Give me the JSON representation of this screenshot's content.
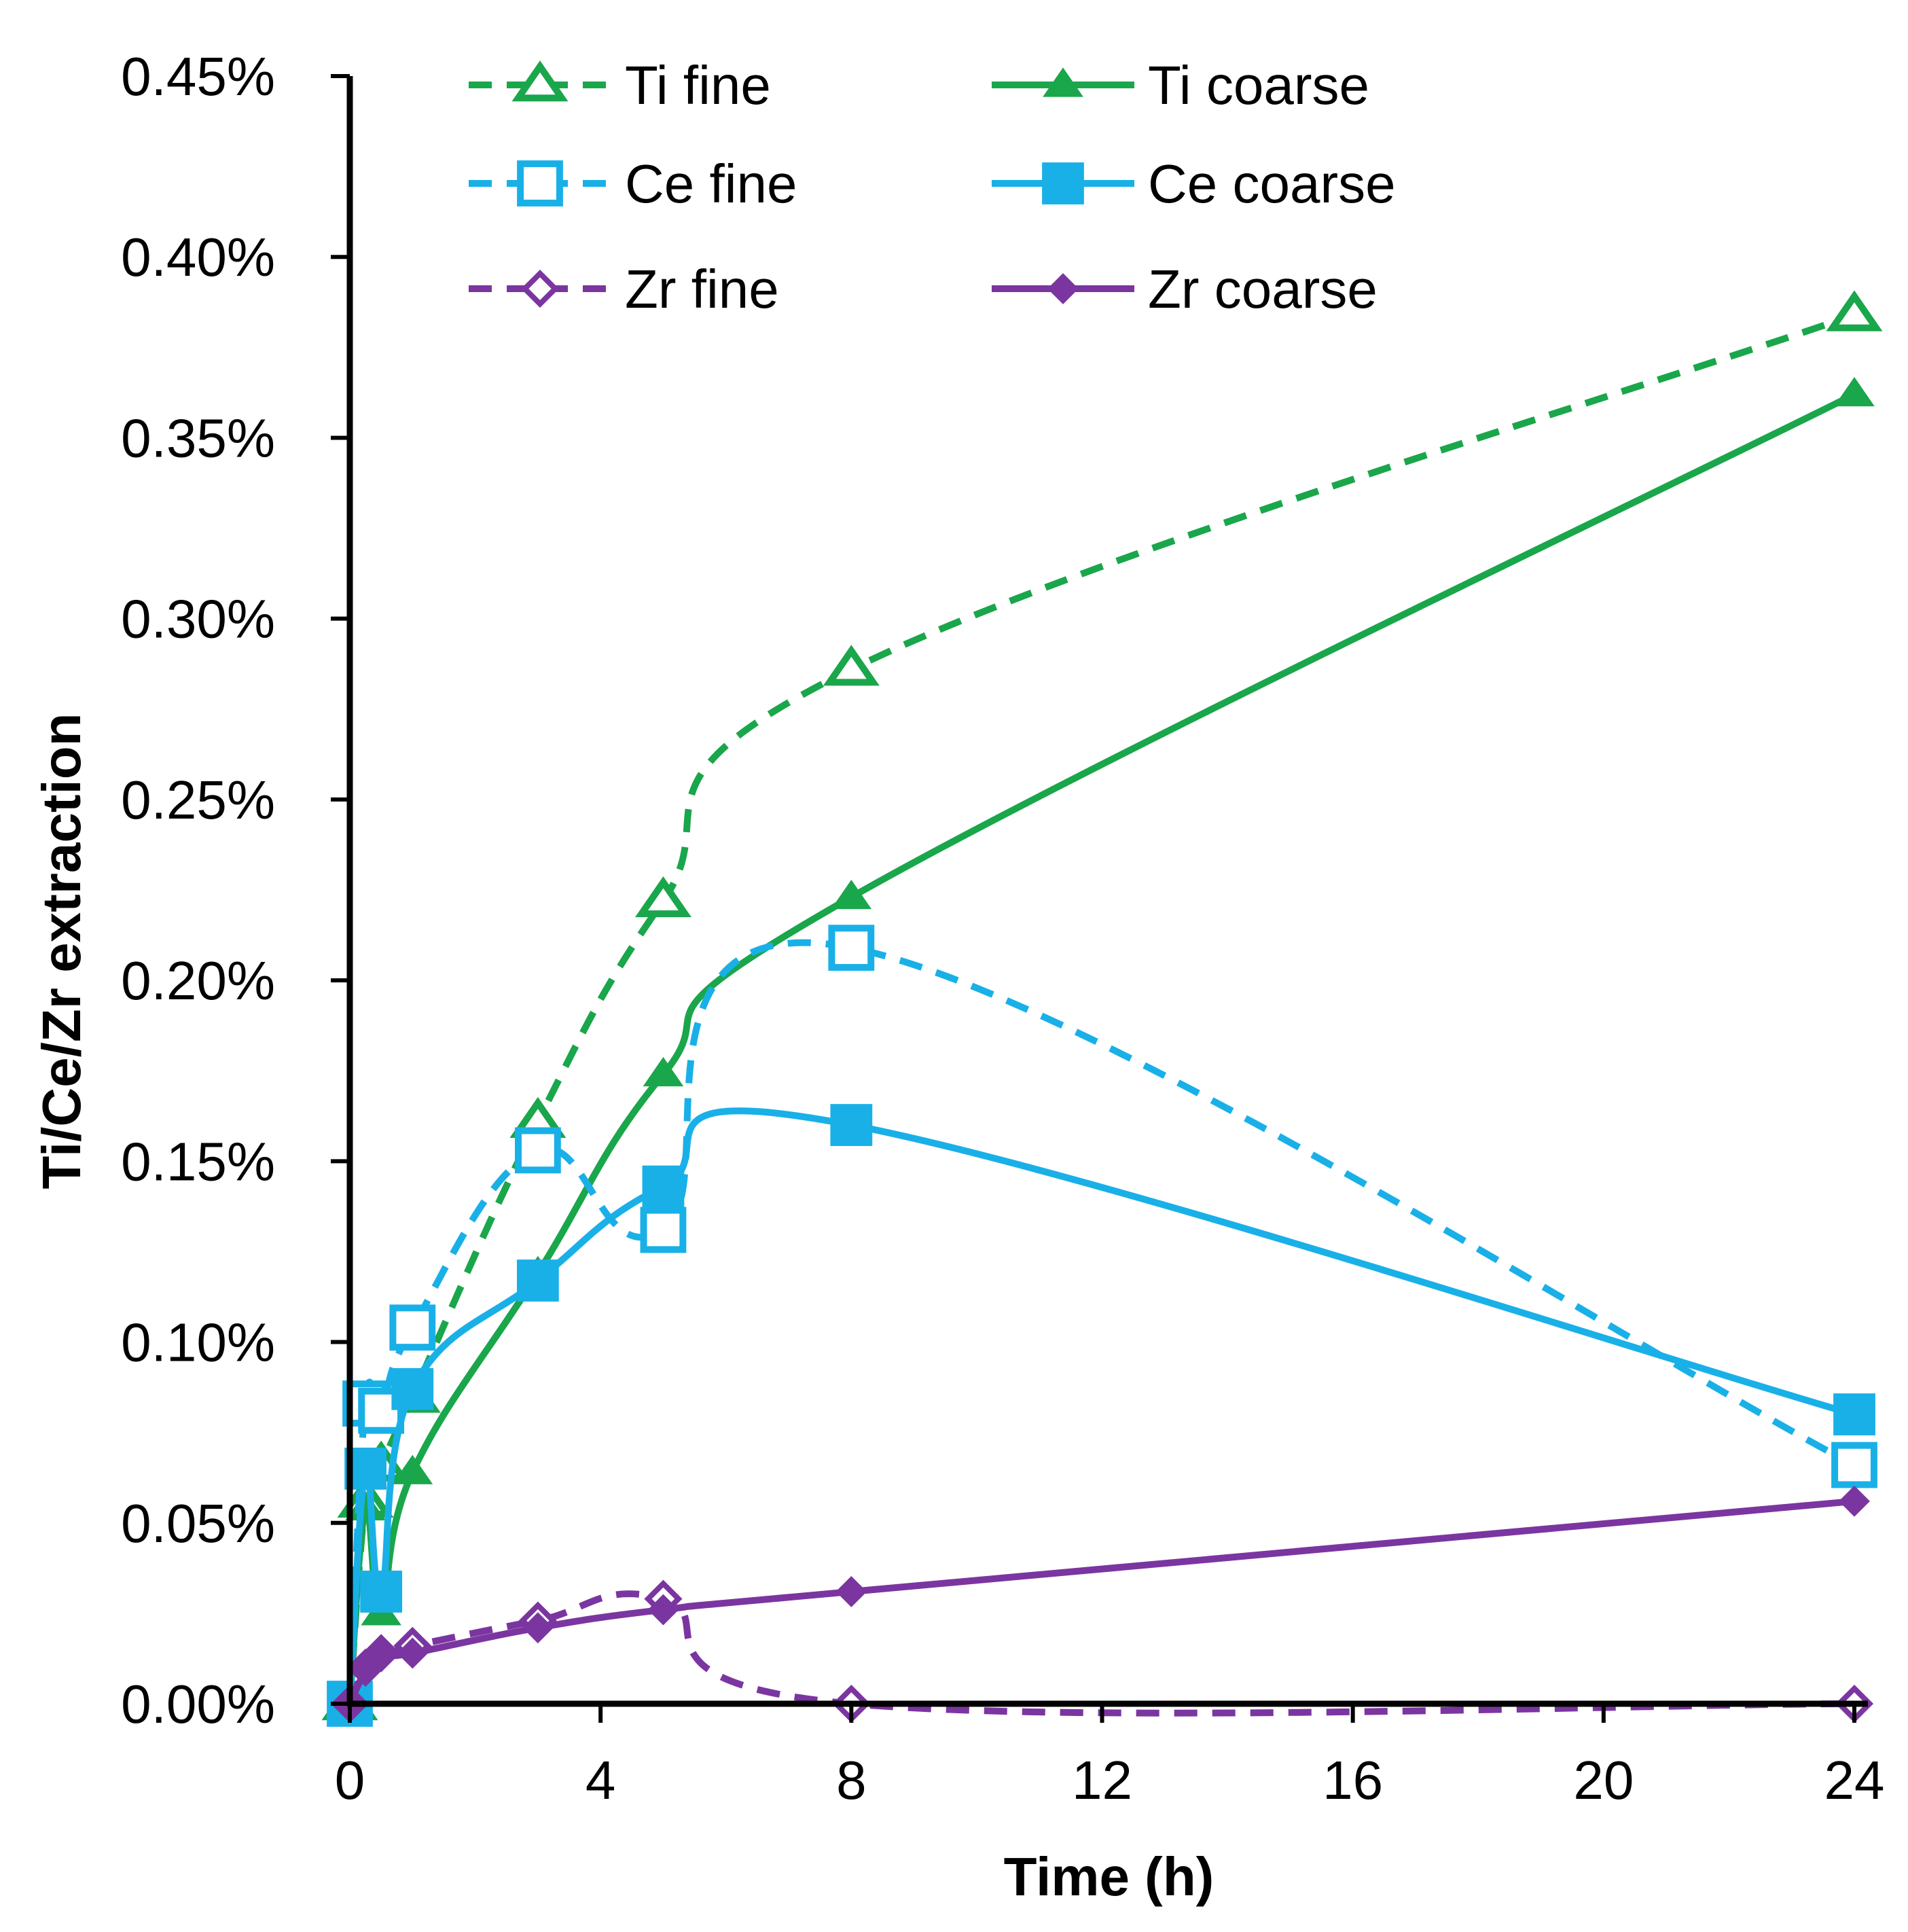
{
  "chart_data": {
    "type": "line",
    "title": "",
    "xlabel": "Time (h)",
    "ylabel": "Ti/Ce/Zr extraction",
    "xlim": [
      0,
      24
    ],
    "ylim": [
      0,
      0.45
    ],
    "xticks": [
      0,
      4,
      8,
      12,
      16,
      20,
      24
    ],
    "xtick_labels": [
      "0",
      "4",
      "8",
      "12",
      "16",
      "20",
      "24"
    ],
    "yticks": [
      0,
      0.05,
      0.1,
      0.15,
      0.2,
      0.25,
      0.3,
      0.35,
      0.4,
      0.45
    ],
    "ytick_labels": [
      "0.00%",
      "0.05%",
      "0.10%",
      "0.15%",
      "0.20%",
      "0.25%",
      "0.30%",
      "0.35%",
      "0.40%",
      "0.45%"
    ],
    "grid": false,
    "legend_position": "top",
    "series": [
      {
        "name": "Ti fine",
        "color": "#1aa64b",
        "dash": "dashed",
        "marker": "triangle-open",
        "x": [
          0,
          0.25,
          0.5,
          1,
          3,
          5,
          8,
          24
        ],
        "values": [
          0,
          0.056,
          0.066,
          0.085,
          0.161,
          0.222,
          0.286,
          0.384
        ]
      },
      {
        "name": "Ti coarse",
        "color": "#1aa64b",
        "dash": "solid",
        "marker": "triangle-filled",
        "x": [
          0,
          0.25,
          0.5,
          1,
          3,
          5,
          8,
          24
        ],
        "values": [
          0,
          0.054,
          0.025,
          0.064,
          0.119,
          0.174,
          0.223,
          0.362
        ]
      },
      {
        "name": "Ce fine",
        "color": "#19b0e8",
        "dash": "dashed",
        "marker": "square-open",
        "x": [
          0,
          0.25,
          0.5,
          1,
          3,
          5,
          8,
          24
        ],
        "values": [
          0,
          0.083,
          0.081,
          0.104,
          0.153,
          0.131,
          0.209,
          0.066
        ]
      },
      {
        "name": "Ce coarse",
        "color": "#19b0e8",
        "dash": "solid",
        "marker": "square-filled",
        "x": [
          0,
          0.25,
          0.5,
          1,
          3,
          5,
          8,
          24
        ],
        "values": [
          0,
          0.065,
          0.031,
          0.087,
          0.117,
          0.143,
          0.16,
          0.08
        ]
      },
      {
        "name": "Zr fine",
        "color": "#7b35a0",
        "dash": "dashed",
        "marker": "diamond-open",
        "x": [
          0,
          0.25,
          0.5,
          1,
          3,
          5,
          8,
          24
        ],
        "values": [
          0,
          0.01,
          0.014,
          0.016,
          0.023,
          0.029,
          0,
          0
        ]
      },
      {
        "name": "Zr coarse",
        "color": "#7b35a0",
        "dash": "solid",
        "marker": "diamond-filled",
        "x": [
          0,
          0.25,
          0.5,
          1,
          3,
          5,
          8,
          24
        ],
        "values": [
          0,
          0.009,
          0.013,
          0.014,
          0.021,
          0.026,
          0.031,
          0.056
        ]
      }
    ]
  }
}
